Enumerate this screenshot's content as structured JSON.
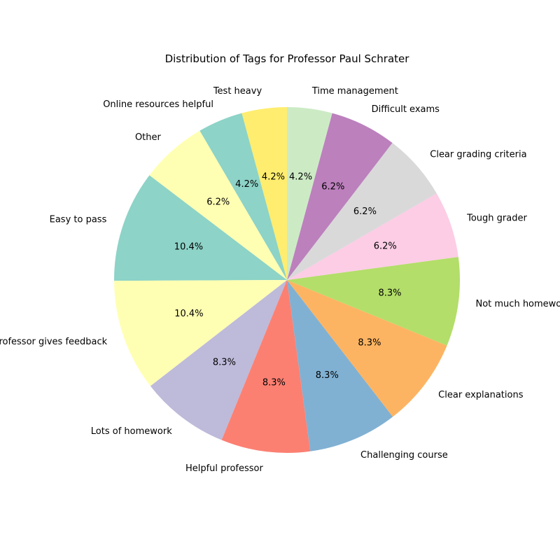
{
  "chart_data": {
    "type": "pie",
    "title": "Distribution of Tags for Professor Paul Schrater",
    "start_angle_deg": 90,
    "direction": "counterclockwise",
    "slices": [
      {
        "label": "Test heavy",
        "value": 4.2,
        "pct_label": "4.2%",
        "color": "#ffed6f"
      },
      {
        "label": "Online resources helpful",
        "value": 4.2,
        "pct_label": "4.2%",
        "color": "#8dd3c7"
      },
      {
        "label": "Other",
        "value": 6.2,
        "pct_label": "6.2%",
        "color": "#ffffb3"
      },
      {
        "label": "Easy to pass",
        "value": 10.4,
        "pct_label": "10.4%",
        "color": "#8dd3c7"
      },
      {
        "label": "Professor gives feedback",
        "value": 10.4,
        "pct_label": "10.4%",
        "color": "#ffffb3"
      },
      {
        "label": "Lots of homework",
        "value": 8.3,
        "pct_label": "8.3%",
        "color": "#bebada"
      },
      {
        "label": "Helpful professor",
        "value": 8.3,
        "pct_label": "8.3%",
        "color": "#fb8072"
      },
      {
        "label": "Challenging course",
        "value": 8.3,
        "pct_label": "8.3%",
        "color": "#80b1d3"
      },
      {
        "label": "Clear explanations",
        "value": 8.3,
        "pct_label": "8.3%",
        "color": "#fdb462"
      },
      {
        "label": "Not much homework",
        "value": 8.3,
        "pct_label": "8.3%",
        "color": "#b3de69"
      },
      {
        "label": "Tough grader",
        "value": 6.2,
        "pct_label": "6.2%",
        "color": "#fccde5"
      },
      {
        "label": "Clear grading criteria",
        "value": 6.2,
        "pct_label": "6.2%",
        "color": "#d9d9d9"
      },
      {
        "label": "Difficult exams",
        "value": 6.2,
        "pct_label": "6.2%",
        "color": "#bc80bd"
      },
      {
        "label": "Time management",
        "value": 4.2,
        "pct_label": "4.2%",
        "color": "#ccebc5"
      }
    ]
  }
}
